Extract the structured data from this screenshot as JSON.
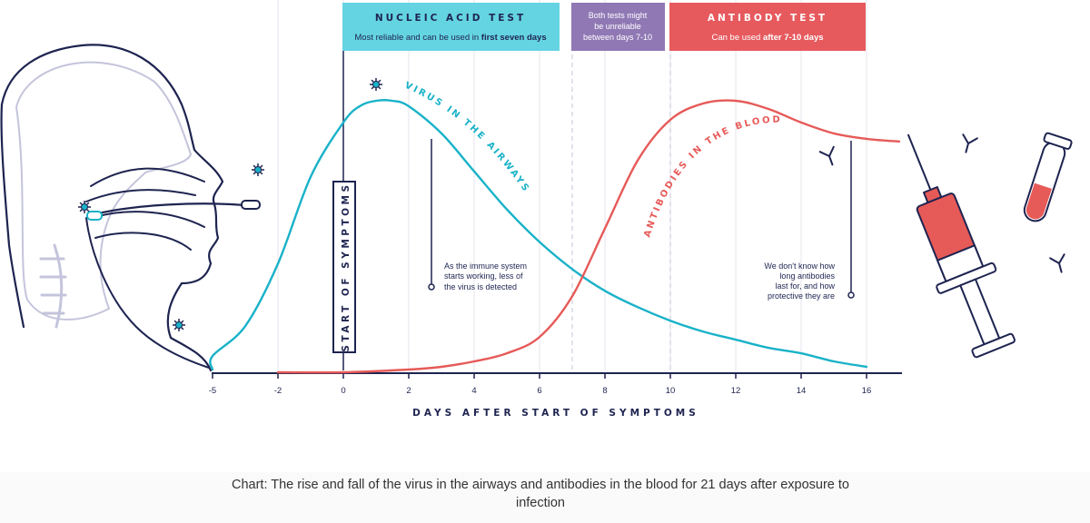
{
  "chart_data": {
    "type": "line",
    "xlabel": "DAYS AFTER START OF SYMPTOMS",
    "ylabel": "",
    "xlim": [
      -5,
      17
    ],
    "x_ticks": [
      -5,
      -2,
      0,
      2,
      4,
      6,
      8,
      10,
      12,
      14,
      16
    ],
    "grid": "vertical",
    "colors": {
      "virus": "#19b2c8",
      "antibody": "#e65a58",
      "axis": "#1e2450",
      "nucleic": "#64d4e2",
      "unreliable": "#8f78b4",
      "antibody_box": "#e65a5e"
    },
    "series": [
      {
        "name": "VIRUS IN THE AIRWAYS",
        "color": "#19b2c8",
        "x": [
          -5,
          -4,
          -3,
          -2,
          -1,
          0,
          0.5,
          1,
          1.5,
          2,
          3,
          4,
          5,
          6,
          7,
          8,
          9,
          10,
          11,
          12,
          13,
          14,
          15,
          16
        ],
        "y": [
          0.01,
          0.06,
          0.17,
          0.4,
          0.72,
          0.92,
          0.98,
          1.0,
          1.0,
          0.98,
          0.88,
          0.74,
          0.6,
          0.48,
          0.38,
          0.3,
          0.24,
          0.19,
          0.15,
          0.12,
          0.09,
          0.07,
          0.04,
          0.02
        ]
      },
      {
        "name": "ANTIBODIES IN THE BLOOD",
        "color": "#e65a58",
        "x": [
          -2,
          0,
          2,
          3,
          4,
          5,
          6,
          7,
          8,
          9,
          10,
          11,
          12,
          13,
          14,
          15,
          16,
          17
        ],
        "y": [
          0.0,
          0.0,
          0.01,
          0.02,
          0.04,
          0.07,
          0.13,
          0.28,
          0.53,
          0.78,
          0.93,
          0.99,
          1.0,
          0.97,
          0.92,
          0.88,
          0.86,
          0.85
        ]
      }
    ],
    "phases": [
      {
        "title": "NUCLEIC ACID TEST",
        "subtitle_normal": "Most reliable and can be used in ",
        "subtitle_bold": "first seven days",
        "x_start": 0,
        "x_end": 7
      },
      {
        "lines": [
          "Both tests might",
          "be unreliable",
          "between days 7-10"
        ],
        "x_start": 7,
        "x_end": 10
      },
      {
        "title": "ANTIBODY TEST",
        "subtitle_normal": "Can be used ",
        "subtitle_bold": "after 7-10 days",
        "x_start": 10,
        "x_end": 16
      }
    ],
    "annotations": [
      {
        "id": "symptoms",
        "text": "START OF SYMPTOMS",
        "x": 0
      },
      {
        "id": "immune",
        "lines": [
          "As the immune system",
          "starts working, less of",
          "the virus is detected"
        ],
        "x": 2.7
      },
      {
        "id": "antibodies",
        "lines": [
          "We don't know how",
          "long antibodies",
          "last for, and how",
          "protective they are"
        ],
        "x": 15.6
      }
    ]
  },
  "caption": "Chart: The rise and fall of the virus in the airways and antibodies in the blood for 21 days after exposure to infection"
}
